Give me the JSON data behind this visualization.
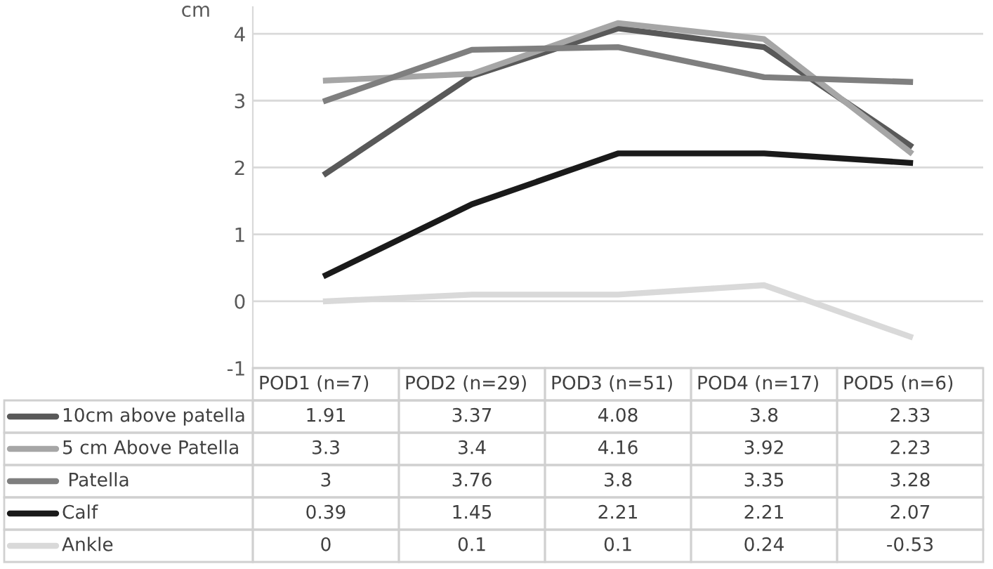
{
  "chart_data": {
    "type": "line",
    "ylabel": "cm",
    "categories": [
      "POD1 (n=7)",
      "POD2 (n=29)",
      "POD3 (n=51)",
      "POD4 (n=17)",
      "POD5 (n=6)"
    ],
    "series": [
      {
        "name": "10cm above patella",
        "color": "#595959",
        "values": [
          1.91,
          3.37,
          4.08,
          3.8,
          2.33
        ]
      },
      {
        "name": "5 cm Above Patella",
        "color": "#a6a6a6",
        "values": [
          3.3,
          3.4,
          4.16,
          3.92,
          2.23
        ]
      },
      {
        "name": " Patella",
        "color": "#7f7f7f",
        "values": [
          3,
          3.76,
          3.8,
          3.35,
          3.28
        ]
      },
      {
        "name": "Calf",
        "color": "#1a1a1a",
        "values": [
          0.39,
          1.45,
          2.21,
          2.21,
          2.07
        ]
      },
      {
        "name": "Ankle",
        "color": "#d9d9d9",
        "values": [
          0,
          0.1,
          0.1,
          0.24,
          -0.53
        ]
      }
    ],
    "ylim": [
      -1,
      4.4
    ],
    "yticks": [
      -1,
      0,
      1,
      2,
      3,
      4
    ],
    "grid": "y",
    "legend": "bottom",
    "data_labels": true,
    "marker": "none",
    "line_style": "solid"
  }
}
